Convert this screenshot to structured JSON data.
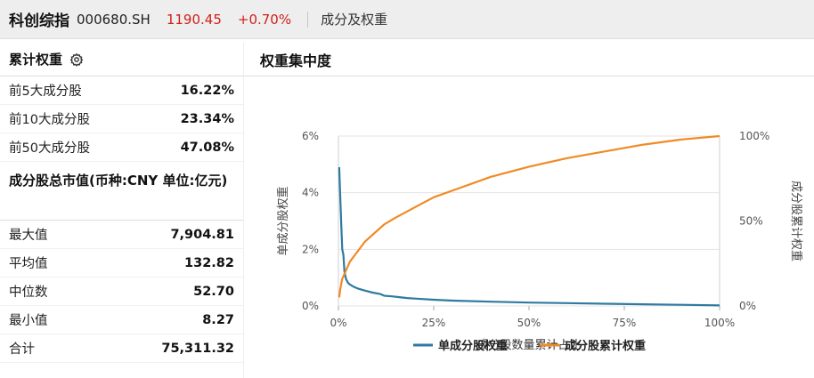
{
  "header": {
    "title": "科创综指",
    "code": "000680.SH",
    "price": "1190.45",
    "change_pct": "+0.70%",
    "tab_label": "成分及权重"
  },
  "colors": {
    "up_red": "#d0201b",
    "series_single": "#2e7aa1",
    "series_cumulative": "#f08a24"
  },
  "left": {
    "cumulative": {
      "title": "累计权重",
      "icon": "gear-icon",
      "rows": [
        {
          "label": "前5大成分股",
          "value": "16.22%"
        },
        {
          "label": "前10大成分股",
          "value": "23.34%"
        },
        {
          "label": "前50大成分股",
          "value": "47.08%"
        }
      ]
    },
    "market_value": {
      "title": "成分股总市值(币种:CNY 单位:亿元)",
      "rows": [
        {
          "label": "最大值",
          "value": "7,904.81"
        },
        {
          "label": "平均值",
          "value": "132.82"
        },
        {
          "label": "中位数",
          "value": "52.70"
        },
        {
          "label": "最小值",
          "value": "8.27"
        },
        {
          "label": "合计",
          "value": "75,311.32"
        }
      ]
    }
  },
  "chart_data": {
    "type": "line",
    "title": "权重集中度",
    "xlabel": "成分股数量累计占比",
    "ylabel": "单成分股权重",
    "y2label": "成分股累计权重",
    "xlim": [
      0,
      100
    ],
    "ylim": [
      0,
      6
    ],
    "y2lim": [
      0,
      100
    ],
    "x_ticks": [
      "0%",
      "25%",
      "50%",
      "75%",
      "100%"
    ],
    "y_ticks": [
      "0%",
      "2%",
      "4%",
      "6%"
    ],
    "y2_ticks": [
      "0%",
      "50%",
      "100%"
    ],
    "legend_position": "bottom",
    "series": [
      {
        "name": "单成分股权重",
        "axis": "left",
        "x": [
          0.2,
          0.5,
          0.8,
          1.0,
          1.3,
          1.6,
          2.0,
          2.5,
          3,
          4,
          5,
          7,
          9,
          11,
          12,
          14,
          16,
          18,
          20,
          25,
          30,
          40,
          50,
          60,
          70,
          80,
          90,
          100
        ],
        "values": [
          4.9,
          3.8,
          2.7,
          2.0,
          1.8,
          1.2,
          0.95,
          0.82,
          0.76,
          0.68,
          0.62,
          0.54,
          0.47,
          0.42,
          0.36,
          0.34,
          0.31,
          0.28,
          0.26,
          0.22,
          0.19,
          0.15,
          0.12,
          0.1,
          0.08,
          0.06,
          0.04,
          0.02
        ]
      },
      {
        "name": "成分股累计权重",
        "axis": "right",
        "x": [
          0.2,
          0.5,
          1,
          2,
          3,
          5,
          7,
          10,
          12,
          15,
          20,
          25,
          30,
          40,
          50,
          60,
          70,
          80,
          90,
          100
        ],
        "values": [
          5,
          10,
          16,
          21,
          26,
          32,
          38,
          44,
          48,
          52,
          58,
          64,
          68,
          76,
          82,
          87,
          91,
          95,
          98,
          100
        ]
      }
    ]
  }
}
